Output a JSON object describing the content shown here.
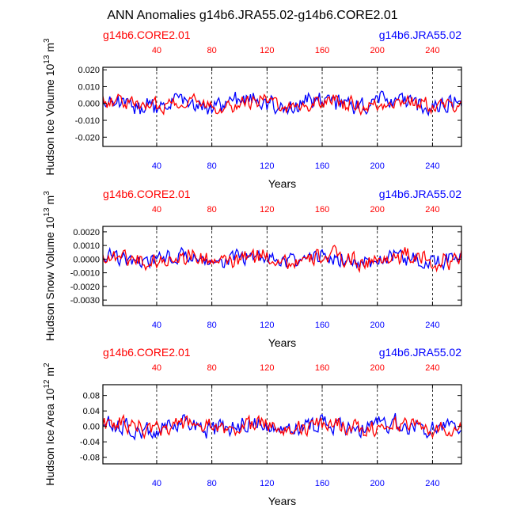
{
  "title": "ANN Anomalies g14b6.JRA55.02-g14b6.CORE2.01",
  "colors": {
    "core": "#ff0000",
    "jra": "#0000ff",
    "axis": "#000000",
    "grid": "#000000"
  },
  "legend": {
    "core": "g14b6.CORE2.01",
    "jra": "g14b6.JRA55.02"
  },
  "panels": [
    {
      "id": "ice-volume",
      "ylabel": "Hudson Ice Volume 10",
      "ylabel_exp": "13",
      "ylabel_unit": " m",
      "ylabel_unit_exp": "3",
      "xlabel": "Years",
      "xlim": [
        1,
        261
      ],
      "ylim": [
        -0.0255,
        0.0215
      ],
      "yticks": [
        -0.02,
        -0.01,
        0.0,
        0.01,
        0.02
      ],
      "ytick_labels": [
        "-0.020",
        "-0.010",
        "0.000",
        "0.010",
        "0.020"
      ],
      "xticks": [
        40,
        80,
        120,
        160,
        200,
        240
      ],
      "xtick_labels": [
        "40",
        "80",
        "120",
        "160",
        "200",
        "240"
      ],
      "amp_jra": 0.0105,
      "amp_core": 0.0085
    },
    {
      "id": "snow-volume",
      "ylabel": "Hudson Snow Volume 10",
      "ylabel_exp": "13",
      "ylabel_unit": " m",
      "ylabel_unit_exp": "3",
      "xlabel": "Years",
      "xlim": [
        1,
        261
      ],
      "ylim": [
        -0.0034,
        0.0024
      ],
      "yticks": [
        -0.003,
        -0.002,
        -0.001,
        0.0,
        0.001,
        0.002
      ],
      "ytick_labels": [
        "-0.0030",
        "-0.0020",
        "-0.0010",
        "0.0000",
        "0.0010",
        "0.0020"
      ],
      "xticks": [
        40,
        80,
        120,
        160,
        200,
        240
      ],
      "xtick_labels": [
        "40",
        "80",
        "120",
        "160",
        "200",
        "240"
      ],
      "amp_jra": 0.0011,
      "amp_core": 0.0012
    },
    {
      "id": "ice-area",
      "ylabel": "Hudson Ice Area 10",
      "ylabel_exp": "12",
      "ylabel_unit": " m",
      "ylabel_unit_exp": "2",
      "xlabel": "Years",
      "xlim": [
        1,
        261
      ],
      "ylim": [
        -0.097,
        0.108
      ],
      "yticks": [
        -0.08,
        -0.04,
        0.0,
        0.04,
        0.08
      ],
      "ytick_labels": [
        "-0.08",
        "-0.04",
        "0.00",
        "0.04",
        "0.08"
      ],
      "xticks": [
        40,
        80,
        120,
        160,
        200,
        240
      ],
      "xtick_labels": [
        "40",
        "80",
        "120",
        "160",
        "200",
        "240"
      ],
      "amp_jra": 0.045,
      "amp_core": 0.04
    }
  ],
  "chart_data": {
    "type": "line",
    "title": "ANN Anomalies g14b6.JRA55.02-g14b6.CORE2.01",
    "xlabel": "Years",
    "subplots": [
      {
        "ylabel": "Hudson Ice Volume 10^13 m^3",
        "ylim": [
          -0.0255,
          0.0215
        ],
        "series": [
          {
            "name": "g14b6.CORE2.01",
            "color": "red"
          },
          {
            "name": "g14b6.JRA55.02",
            "color": "blue"
          }
        ]
      },
      {
        "ylabel": "Hudson Snow Volume 10^13 m^3",
        "ylim": [
          -0.0034,
          0.0024
        ],
        "series": [
          {
            "name": "g14b6.CORE2.01",
            "color": "red"
          },
          {
            "name": "g14b6.JRA55.02",
            "color": "blue"
          }
        ]
      },
      {
        "ylabel": "Hudson Ice Area 10^12 m^2",
        "ylim": [
          -0.097,
          0.108
        ],
        "series": [
          {
            "name": "g14b6.CORE2.01",
            "color": "red"
          },
          {
            "name": "g14b6.JRA55.02",
            "color": "blue"
          }
        ]
      }
    ],
    "xlim": [
      1,
      261
    ],
    "grid": "dashed vertical lines at x ticks"
  }
}
